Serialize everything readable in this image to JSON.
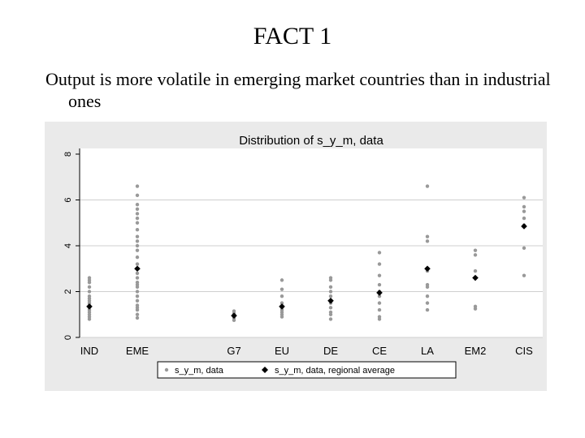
{
  "slide": {
    "title": "FACT 1",
    "text": "Output is more volatile in emerging market countries than in industrial ones"
  },
  "chart_data": {
    "type": "scatter",
    "title": "Distribution of s_y_m, data",
    "xlabel": "",
    "ylabel": "",
    "ylim": [
      0,
      8
    ],
    "yticks": [
      "0",
      "2",
      "4",
      "6",
      "8"
    ],
    "grid": "horizontal",
    "legend_position": "bottom",
    "categories": [
      "IND",
      "EME",
      "G7",
      "EU",
      "DE",
      "CE",
      "LA",
      "EM2",
      "CIS"
    ],
    "series": [
      {
        "name": "s_y_m, data",
        "color": "#999999",
        "marker": "dot",
        "points": [
          [
            "IND",
            0.8
          ],
          [
            "IND",
            0.9
          ],
          [
            "IND",
            1.0
          ],
          [
            "IND",
            1.1
          ],
          [
            "IND",
            1.2
          ],
          [
            "IND",
            1.3
          ],
          [
            "IND",
            1.4
          ],
          [
            "IND",
            1.5
          ],
          [
            "IND",
            1.6
          ],
          [
            "IND",
            1.7
          ],
          [
            "IND",
            1.8
          ],
          [
            "IND",
            2.0
          ],
          [
            "IND",
            2.2
          ],
          [
            "IND",
            2.4
          ],
          [
            "IND",
            2.5
          ],
          [
            "IND",
            2.6
          ],
          [
            "EME",
            0.85
          ],
          [
            "EME",
            1.0
          ],
          [
            "EME",
            1.2
          ],
          [
            "EME",
            1.3
          ],
          [
            "EME",
            1.4
          ],
          [
            "EME",
            1.6
          ],
          [
            "EME",
            1.8
          ],
          [
            "EME",
            2.0
          ],
          [
            "EME",
            2.2
          ],
          [
            "EME",
            2.3
          ],
          [
            "EME",
            2.4
          ],
          [
            "EME",
            2.6
          ],
          [
            "EME",
            2.8
          ],
          [
            "EME",
            3.0
          ],
          [
            "EME",
            3.2
          ],
          [
            "EME",
            3.5
          ],
          [
            "EME",
            3.8
          ],
          [
            "EME",
            4.0
          ],
          [
            "EME",
            4.2
          ],
          [
            "EME",
            4.4
          ],
          [
            "EME",
            4.7
          ],
          [
            "EME",
            5.0
          ],
          [
            "EME",
            5.2
          ],
          [
            "EME",
            5.4
          ],
          [
            "EME",
            5.6
          ],
          [
            "EME",
            5.8
          ],
          [
            "EME",
            6.2
          ],
          [
            "EME",
            6.6
          ],
          [
            "G7",
            0.75
          ],
          [
            "G7",
            0.85
          ],
          [
            "G7",
            0.95
          ],
          [
            "G7",
            1.05
          ],
          [
            "G7",
            1.15
          ],
          [
            "EU",
            0.9
          ],
          [
            "EU",
            1.0
          ],
          [
            "EU",
            1.1
          ],
          [
            "EU",
            1.2
          ],
          [
            "EU",
            1.3
          ],
          [
            "EU",
            1.5
          ],
          [
            "EU",
            1.8
          ],
          [
            "EU",
            2.1
          ],
          [
            "EU",
            2.5
          ],
          [
            "DE",
            0.8
          ],
          [
            "DE",
            1.0
          ],
          [
            "DE",
            1.1
          ],
          [
            "DE",
            1.3
          ],
          [
            "DE",
            1.5
          ],
          [
            "DE",
            1.8
          ],
          [
            "DE",
            2.0
          ],
          [
            "DE",
            2.2
          ],
          [
            "DE",
            2.5
          ],
          [
            "DE",
            2.6
          ],
          [
            "CE",
            0.8
          ],
          [
            "CE",
            0.9
          ],
          [
            "CE",
            1.2
          ],
          [
            "CE",
            1.5
          ],
          [
            "CE",
            1.8
          ],
          [
            "CE",
            2.0
          ],
          [
            "CE",
            2.3
          ],
          [
            "CE",
            2.7
          ],
          [
            "CE",
            3.2
          ],
          [
            "CE",
            3.7
          ],
          [
            "LA",
            1.2
          ],
          [
            "LA",
            1.5
          ],
          [
            "LA",
            1.8
          ],
          [
            "LA",
            2.2
          ],
          [
            "LA",
            2.3
          ],
          [
            "LA",
            2.9
          ],
          [
            "LA",
            4.2
          ],
          [
            "LA",
            4.4
          ],
          [
            "LA",
            6.6
          ],
          [
            "EM2",
            1.25
          ],
          [
            "EM2",
            1.35
          ],
          [
            "EM2",
            2.9
          ],
          [
            "EM2",
            3.6
          ],
          [
            "EM2",
            3.8
          ],
          [
            "CIS",
            2.7
          ],
          [
            "CIS",
            3.9
          ],
          [
            "CIS",
            4.9
          ],
          [
            "CIS",
            5.2
          ],
          [
            "CIS",
            5.5
          ],
          [
            "CIS",
            5.7
          ],
          [
            "CIS",
            6.1
          ]
        ]
      },
      {
        "name": "s_y_m, data, regional average",
        "color": "#000000",
        "marker": "diamond",
        "points": [
          [
            "IND",
            1.35
          ],
          [
            "EME",
            3.0
          ],
          [
            "G7",
            0.95
          ],
          [
            "EU",
            1.35
          ],
          [
            "DE",
            1.6
          ],
          [
            "CE",
            1.95
          ],
          [
            "LA",
            3.0
          ],
          [
            "EM2",
            2.6
          ],
          [
            "CIS",
            4.85
          ]
        ]
      }
    ]
  }
}
